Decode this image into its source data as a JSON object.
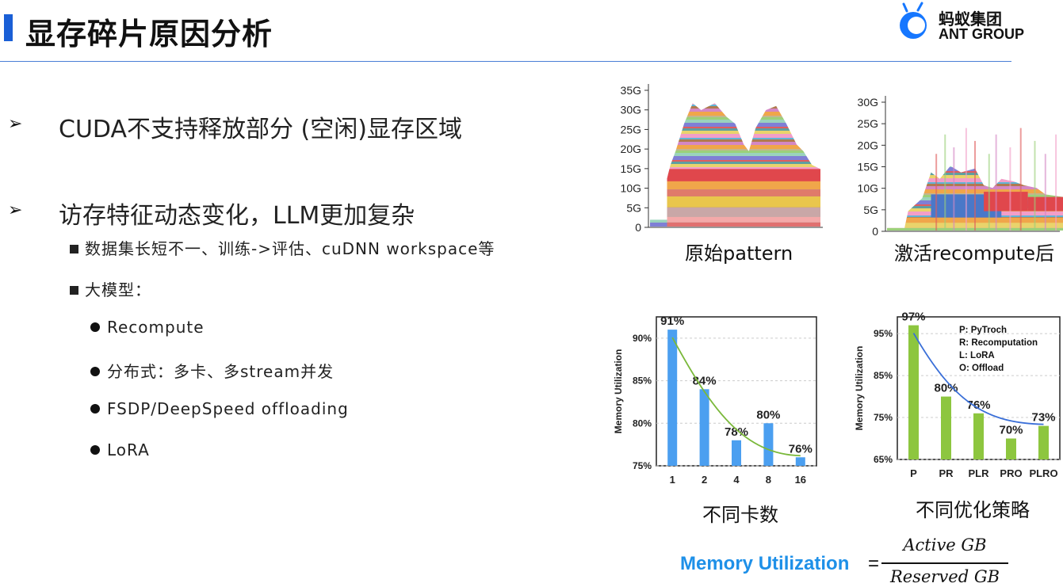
{
  "header": {
    "title": "显存碎片原因分析",
    "logo_cn": "蚂蚁集团",
    "logo_en": "ANT GROUP",
    "accent": "#1a5fd6"
  },
  "bullets": [
    {
      "text": "CUDA不支持释放部分 (空闲)显存区域"
    },
    {
      "text": "访存特征动态变化，LLM更加复杂"
    }
  ],
  "sub_items": [
    "数据集长短不一、训练->评估、cuDNN workspace等",
    "大模型："
  ],
  "dot_items": [
    "Recompute",
    "分布式：多卡、多stream并发",
    "FSDP/DeepSpeed offloading",
    "LoRA"
  ],
  "captions": {
    "original": "原始pattern",
    "recompute": "激活recompute后",
    "cards": "不同卡数",
    "strategies": "不同优化策略"
  },
  "formula": {
    "label": "Memory Utilization",
    "eq": "=",
    "numerator": "Active GB",
    "denominator": "Reserved GB"
  },
  "chart_data": [
    {
      "type": "area",
      "yticks": [
        "35G",
        "30G",
        "25G",
        "20G",
        "15G",
        "10G",
        "5G",
        "0"
      ],
      "ylim": [
        0,
        35
      ]
    },
    {
      "type": "area",
      "yticks": [
        "30G",
        "25G",
        "20G",
        "15G",
        "10G",
        "5G",
        "0"
      ],
      "ylim": [
        0,
        30
      ]
    },
    {
      "type": "bar",
      "ylabel": "Memory Utilization",
      "categories": [
        "1",
        "2",
        "4",
        "8",
        "16"
      ],
      "values": [
        91,
        84,
        78,
        80,
        76
      ],
      "labels": [
        "91%",
        "84%",
        "78%",
        "80%",
        "76%"
      ],
      "yticks": [
        "90%",
        "85%",
        "80%",
        "75%"
      ],
      "ylim": [
        75,
        92.5
      ],
      "color": "#4b9ff0",
      "trend_color": "#7ab83a"
    },
    {
      "type": "bar",
      "ylabel": "Memory Utilization",
      "categories": [
        "P",
        "PR",
        "PLR",
        "PRO",
        "PLRO"
      ],
      "values": [
        97,
        80,
        76,
        70,
        73
      ],
      "labels": [
        "97%",
        "80%",
        "76%",
        "70%",
        "73%"
      ],
      "yticks": [
        "95%",
        "85%",
        "75%",
        "65%"
      ],
      "ylim": [
        65,
        99
      ],
      "legend": [
        "P: PyTroch",
        "R: Recomputation",
        "L: LoRA",
        "O: Offload"
      ],
      "color": "#8dc63f",
      "trend_color": "#3a6fd8"
    }
  ]
}
